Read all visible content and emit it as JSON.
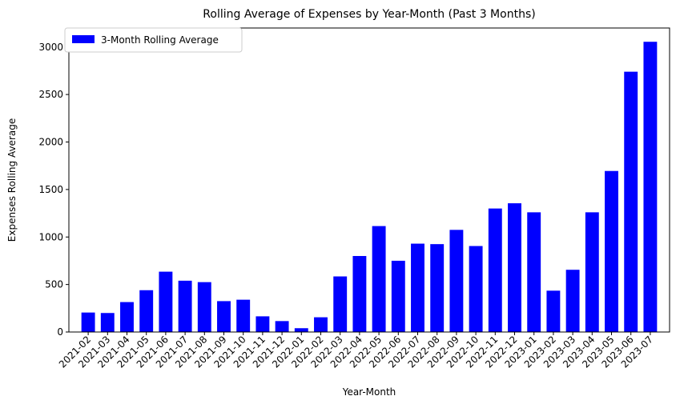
{
  "chart_data": {
    "type": "bar",
    "title": "Rolling Average of Expenses by Year-Month (Past 3 Months)",
    "xlabel": "Year-Month",
    "ylabel": "Expenses Rolling Average",
    "ylim": [
      0,
      3200
    ],
    "yticks": [
      0,
      500,
      1000,
      1500,
      2000,
      2500,
      3000
    ],
    "grid": false,
    "legend_position": "upper-left",
    "series": [
      {
        "name": "3-Month Rolling Average",
        "color": "#0000ff",
        "values": [
          205,
          200,
          315,
          440,
          635,
          540,
          525,
          325,
          340,
          165,
          115,
          40,
          155,
          585,
          800,
          1115,
          750,
          930,
          925,
          1075,
          905,
          1300,
          1355,
          1260,
          435,
          655,
          1260,
          1695,
          2740,
          3055
        ]
      }
    ],
    "categories": [
      "2021-02",
      "2021-03",
      "2021-04",
      "2021-05",
      "2021-06",
      "2021-07",
      "2021-08",
      "2021-09",
      "2021-10",
      "2021-11",
      "2021-12",
      "2022-01",
      "2022-02",
      "2022-03",
      "2022-04",
      "2022-05",
      "2022-06",
      "2022-07",
      "2022-08",
      "2022-09",
      "2022-10",
      "2022-11",
      "2022-12",
      "2023-01",
      "2023-02",
      "2023-03",
      "2023-04",
      "2023-05",
      "2023-06",
      "2023-07"
    ]
  }
}
